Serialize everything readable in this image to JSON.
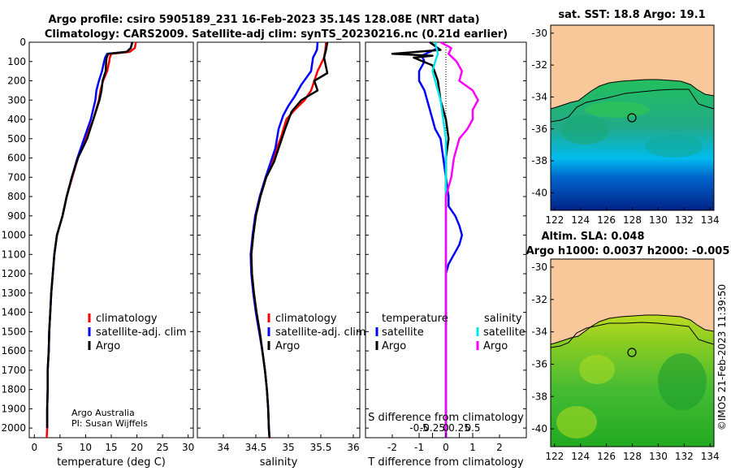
{
  "title": {
    "line1": "Argo profile: csiro 5905189_231 16-Feb-2023 35.14S 128.08E (NRT data)",
    "line2": "Climatology: CARS2009. Satellite-adj clim: synTS_20230216.nc (0.21d earlier)"
  },
  "colors": {
    "climatology": "#ff0000",
    "satellite_adj": "#0000ff",
    "argo": "#000000",
    "sal_satellite": "#00e5ee",
    "sal_argo": "#ff00ff",
    "land": "#f9c89a"
  },
  "credit": {
    "line1": "Argo Australia",
    "line2": "PI: Susan Wijffels"
  },
  "side_stamp": "©IMOS 21-Feb-2023 11:39:50",
  "chart_data": [
    {
      "id": "temperature",
      "type": "line",
      "xlabel": "temperature (deg C)",
      "xlim": [
        -1,
        31
      ],
      "xticks": [
        0,
        5,
        10,
        15,
        20,
        25,
        30
      ],
      "ylim": [
        2050,
        0
      ],
      "yticks": [
        0,
        100,
        200,
        300,
        400,
        500,
        600,
        700,
        800,
        900,
        1000,
        1100,
        1200,
        1300,
        1400,
        1500,
        1600,
        1700,
        1800,
        1900,
        2000
      ],
      "legend": [
        "climatology",
        "satellite-adj. clim",
        "Argo"
      ],
      "series": [
        {
          "name": "climatology",
          "color": "#ff0000",
          "x": [
            19.8,
            19.6,
            18.6,
            15,
            14.7,
            14.6,
            14.2,
            13.4,
            12.9,
            12.6,
            11.5,
            10,
            8.5,
            7.4,
            6.3,
            5.5,
            4.4,
            3.9,
            3.6,
            3.3,
            3.1,
            2.9,
            2.8,
            2.6,
            2.6,
            2.5,
            2.5,
            2.4
          ],
          "y": [
            0,
            30,
            50,
            60,
            80,
            100,
            150,
            200,
            250,
            300,
            400,
            500,
            600,
            700,
            800,
            900,
            1000,
            1100,
            1200,
            1300,
            1400,
            1500,
            1600,
            1700,
            1800,
            1900,
            2000,
            2050
          ]
        },
        {
          "name": "satellite-adj. clim",
          "color": "#0000ff",
          "x": [
            19.1,
            18.8,
            18,
            14.2,
            13.8,
            13.6,
            13.2,
            12.6,
            12.1,
            11.9,
            11,
            9.7,
            8.4,
            7.3,
            6.3,
            5.5,
            4.4,
            3.9,
            3.6,
            3.3,
            3.1,
            2.9,
            2.8,
            2.6,
            2.6,
            2.5,
            2.5
          ],
          "y": [
            0,
            30,
            50,
            60,
            80,
            100,
            150,
            200,
            250,
            300,
            400,
            500,
            600,
            700,
            800,
            900,
            1000,
            1100,
            1200,
            1300,
            1400,
            1500,
            1600,
            1700,
            1800,
            1900,
            2000
          ]
        },
        {
          "name": "Argo",
          "color": "#000000",
          "x": [
            19.1,
            18.8,
            18,
            14.4,
            14.1,
            14,
            13.9,
            13.3,
            13.1,
            12.7,
            11.5,
            10.3,
            8.5,
            7.3,
            6.3,
            5.5,
            4.4,
            3.9,
            3.6,
            3.3,
            3.1,
            2.9,
            2.8,
            2.6,
            2.6,
            2.5,
            2.5
          ],
          "y": [
            0,
            30,
            50,
            60,
            80,
            100,
            150,
            200,
            250,
            300,
            400,
            500,
            600,
            700,
            800,
            900,
            1000,
            1100,
            1200,
            1300,
            1400,
            1500,
            1600,
            1700,
            1800,
            1900,
            2000
          ]
        }
      ],
      "xtick_labels": [
        "0",
        "5",
        "10",
        "15",
        "20",
        "25",
        "30"
      ]
    },
    {
      "id": "salinity",
      "type": "line",
      "xlabel": "salinity",
      "xlim": [
        33.6,
        36.1
      ],
      "xticks": [
        34,
        34.5,
        35,
        35.5,
        36
      ],
      "xtick_labels": [
        "34",
        "34.5",
        "35",
        "35.5",
        "36"
      ],
      "legend": [
        "climatology",
        "satellite-adj. clim",
        "Argo"
      ],
      "series": [
        {
          "name": "climatology",
          "color": "#ff0000",
          "x": [
            35.58,
            35.57,
            35.55,
            35.45,
            35.4,
            35.35,
            35.25,
            35.1,
            34.97,
            34.88,
            34.82,
            34.77,
            34.66,
            34.57,
            34.5,
            34.46,
            34.43,
            34.44,
            34.47,
            34.51,
            34.56,
            34.6,
            34.64,
            34.67,
            34.69,
            34.7,
            34.71,
            34.72
          ],
          "y": [
            0,
            40,
            80,
            150,
            200,
            250,
            300,
            350,
            400,
            500,
            550,
            600,
            700,
            800,
            900,
            1000,
            1100,
            1200,
            1300,
            1400,
            1500,
            1600,
            1700,
            1800,
            1900,
            2000,
            2050,
            2050
          ]
        },
        {
          "name": "satellite-adj. clim",
          "color": "#0000ff",
          "x": [
            35.45,
            35.44,
            35.38,
            35.35,
            35.2,
            35.1,
            35.0,
            34.92,
            34.85,
            34.8,
            34.75,
            34.65,
            34.56,
            34.49,
            34.45,
            34.42,
            34.43,
            34.46,
            34.5,
            34.55,
            34.6,
            34.64,
            34.67,
            34.69,
            34.7,
            34.71
          ],
          "y": [
            0,
            40,
            80,
            150,
            220,
            280,
            330,
            380,
            450,
            550,
            600,
            700,
            800,
            900,
            1000,
            1100,
            1200,
            1300,
            1400,
            1500,
            1600,
            1700,
            1800,
            1900,
            2000,
            2050
          ]
        },
        {
          "name": "Argo",
          "color": "#000000",
          "x": [
            35.6,
            35.58,
            35.55,
            35.6,
            35.4,
            35.45,
            35.2,
            35.05,
            34.95,
            34.85,
            34.78,
            34.66,
            34.57,
            34.5,
            34.46,
            34.43,
            34.44,
            34.47,
            34.51,
            34.56,
            34.6,
            34.64,
            34.67,
            34.69,
            34.7,
            34.71
          ],
          "y": [
            0,
            40,
            80,
            160,
            200,
            250,
            300,
            360,
            450,
            550,
            620,
            700,
            800,
            900,
            1000,
            1100,
            1200,
            1300,
            1400,
            1500,
            1600,
            1700,
            1800,
            1900,
            2000,
            2050
          ]
        }
      ]
    },
    {
      "id": "difference",
      "type": "line",
      "xlabel": "T difference from climatology",
      "xlabel_top": "S difference from climatology",
      "xlim": [
        -3,
        3
      ],
      "xticks": [
        -2,
        -1,
        0,
        1,
        2
      ],
      "xtick_labels": [
        "-2",
        "-1",
        "0",
        "1",
        "2"
      ],
      "top_ticks": [
        -1,
        -0.5,
        0,
        0.5,
        1
      ],
      "top_tick_labels": [
        "-0.5",
        "-0.25",
        "0",
        "0.25",
        "0.5"
      ],
      "legend_temperature": {
        "title": "temperature",
        "items": [
          "satellite",
          "Argo"
        ]
      },
      "legend_salinity": {
        "title": "salinity",
        "items": [
          "satellite",
          "Argo"
        ]
      },
      "series": [
        {
          "name": "T satellite",
          "color": "#0000ff",
          "x": [
            -0.6,
            -0.3,
            -0.9,
            -0.8,
            -1.0,
            -1.0,
            -0.8,
            -0.7,
            -0.6,
            -0.5,
            -0.4,
            -0.2,
            -0.1,
            0,
            0.1,
            0.1,
            0.35,
            0.5,
            0.6,
            0.5,
            0.3,
            0.1,
            0,
            0,
            0,
            0,
            0
          ],
          "y": [
            0,
            30,
            70,
            100,
            150,
            200,
            250,
            300,
            350,
            400,
            450,
            500,
            600,
            700,
            800,
            850,
            900,
            950,
            1000,
            1050,
            1100,
            1150,
            1200,
            1400,
            1600,
            1800,
            2050
          ]
        },
        {
          "name": "T Argo",
          "color": "#000000",
          "x": [
            -0.6,
            -0.2,
            -2.0,
            -0.5,
            -1.2,
            -0.5,
            -0.3,
            -0.2,
            0,
            0.1,
            0,
            0,
            0,
            0,
            0,
            0,
            0,
            0
          ],
          "y": [
            0,
            40,
            60,
            70,
            80,
            120,
            200,
            300,
            400,
            500,
            600,
            700,
            800,
            1000,
            1200,
            1500,
            1800,
            2050
          ]
        },
        {
          "name": "S satellite",
          "color": "#00e5ee",
          "x": [
            -0.4,
            -0.3,
            -0.4,
            -0.5,
            -0.4,
            -0.3,
            -0.2,
            -0.1,
            0,
            0,
            0,
            0,
            0,
            0
          ],
          "y": [
            0,
            60,
            100,
            150,
            200,
            250,
            300,
            400,
            500,
            700,
            1000,
            1400,
            1800,
            2050
          ]
        },
        {
          "name": "S Argo",
          "color": "#ff00ff",
          "x": [
            -0.2,
            0.2,
            0.1,
            0.4,
            0.6,
            0.5,
            1.0,
            1.2,
            1.0,
            1.0,
            0.8,
            0.5,
            0.3,
            0.2,
            0,
            0,
            0,
            0
          ],
          "y": [
            0,
            30,
            60,
            100,
            150,
            200,
            250,
            300,
            350,
            400,
            450,
            500,
            600,
            700,
            800,
            1200,
            1600,
            2050
          ]
        }
      ]
    },
    {
      "id": "sst_map",
      "type": "heatmap",
      "title": "sat. SST: 18.8 Argo: 19.1",
      "xlim": [
        121.7,
        134.3
      ],
      "ylim": [
        -41.1,
        -29.5
      ],
      "xticks": [
        122,
        124,
        126,
        128,
        130,
        132,
        134
      ],
      "yticks": [
        -30,
        -32,
        -34,
        -36,
        -38,
        -40
      ],
      "xtick_labels": [
        "122",
        "124",
        "126",
        "128",
        "130",
        "132",
        "134"
      ],
      "ytick_labels": [
        "-30",
        "-32",
        "-34",
        "-36",
        "-38",
        "-40"
      ],
      "argo_position": [
        128.08,
        -35.14
      ]
    },
    {
      "id": "sla_map",
      "type": "heatmap",
      "title": "Altim. SLA: 0.048",
      "subtitle": "Argo h1000: 0.0037 h2000: -0.005",
      "xlim": [
        121.7,
        134.3
      ],
      "ylim": [
        -41.1,
        -29.5
      ],
      "xticks": [
        122,
        124,
        126,
        128,
        130,
        132,
        134
      ],
      "yticks": [
        -30,
        -32,
        -34,
        -36,
        -38,
        -40
      ],
      "xtick_labels": [
        "122",
        "124",
        "126",
        "128",
        "130",
        "132",
        "134"
      ],
      "ytick_labels": [
        "-30",
        "-32",
        "-34",
        "-36",
        "-38",
        "-40"
      ],
      "argo_position": [
        128.08,
        -35.14
      ]
    }
  ]
}
